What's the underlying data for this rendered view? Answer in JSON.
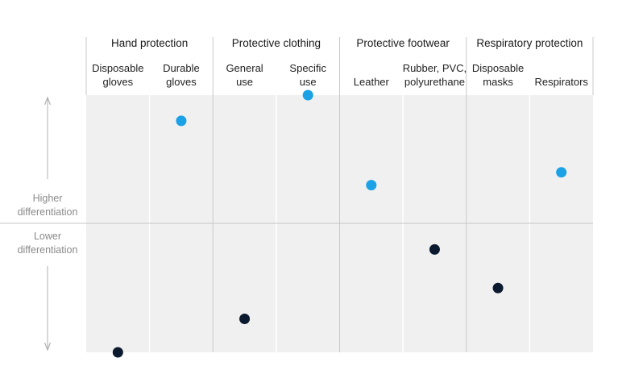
{
  "chart_data": {
    "type": "scatter",
    "groups": [
      {
        "title": "Hand protection",
        "categories": [
          [
            "Disposable",
            "gloves"
          ],
          [
            "Durable",
            "gloves"
          ]
        ]
      },
      {
        "title": "Protective clothing",
        "categories": [
          [
            "General",
            "use"
          ],
          [
            "Specific",
            "use"
          ]
        ]
      },
      {
        "title": "Protective footwear",
        "categories": [
          [
            "Leather"
          ],
          [
            "Rubber, PVC,",
            "polyurethane"
          ]
        ]
      },
      {
        "title": "Respiratory protection",
        "categories": [
          [
            "Disposable",
            "masks"
          ],
          [
            "Respirators"
          ]
        ]
      }
    ],
    "y_axis": {
      "upper_label": [
        "Higher",
        "differentiation"
      ],
      "lower_label": [
        "Lower",
        "differentiation"
      ],
      "ylim": [
        0,
        1
      ],
      "midline": 0.5
    },
    "points": [
      {
        "category": "Disposable gloves",
        "y": 0.0,
        "level": "lower"
      },
      {
        "category": "Durable gloves",
        "y": 0.9,
        "level": "higher"
      },
      {
        "category": "General use",
        "y": 0.13,
        "level": "lower"
      },
      {
        "category": "Specific use",
        "y": 1.0,
        "level": "higher"
      },
      {
        "category": "Leather",
        "y": 0.65,
        "level": "higher"
      },
      {
        "category": "Rubber, PVC, polyurethane",
        "y": 0.4,
        "level": "lower"
      },
      {
        "category": "Disposable masks",
        "y": 0.25,
        "level": "lower"
      },
      {
        "category": "Respirators",
        "y": 0.7,
        "level": "higher"
      }
    ],
    "colors": {
      "higher": "#1aa1e6",
      "lower": "#0b1a2e",
      "panel": "#f0f0f0",
      "divider": "#c9c9c9",
      "midline": "#c4c4c4",
      "arrow": "#b0b0b0"
    },
    "grid": false,
    "legend": "none"
  }
}
